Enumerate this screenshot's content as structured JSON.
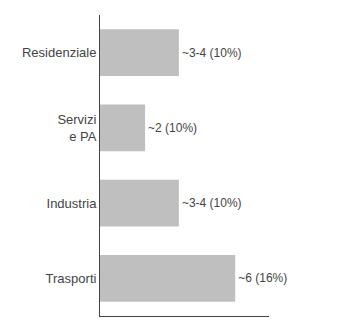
{
  "chart_data": {
    "type": "bar",
    "orientation": "horizontal",
    "categories": [
      "Trasporti",
      "Industria",
      "Servizi\ne PA",
      "Residenziale"
    ],
    "values": [
      6,
      3.5,
      2,
      3.5
    ],
    "value_labels": [
      "~6 (16%)",
      "~3-4 (10%)",
      "~2 (10%)",
      "~3-4 (10%)"
    ],
    "data_labels": true,
    "color": "#c0bfc0",
    "xlim": [
      0,
      7.5
    ],
    "grid": false,
    "tick_labels": "y"
  }
}
